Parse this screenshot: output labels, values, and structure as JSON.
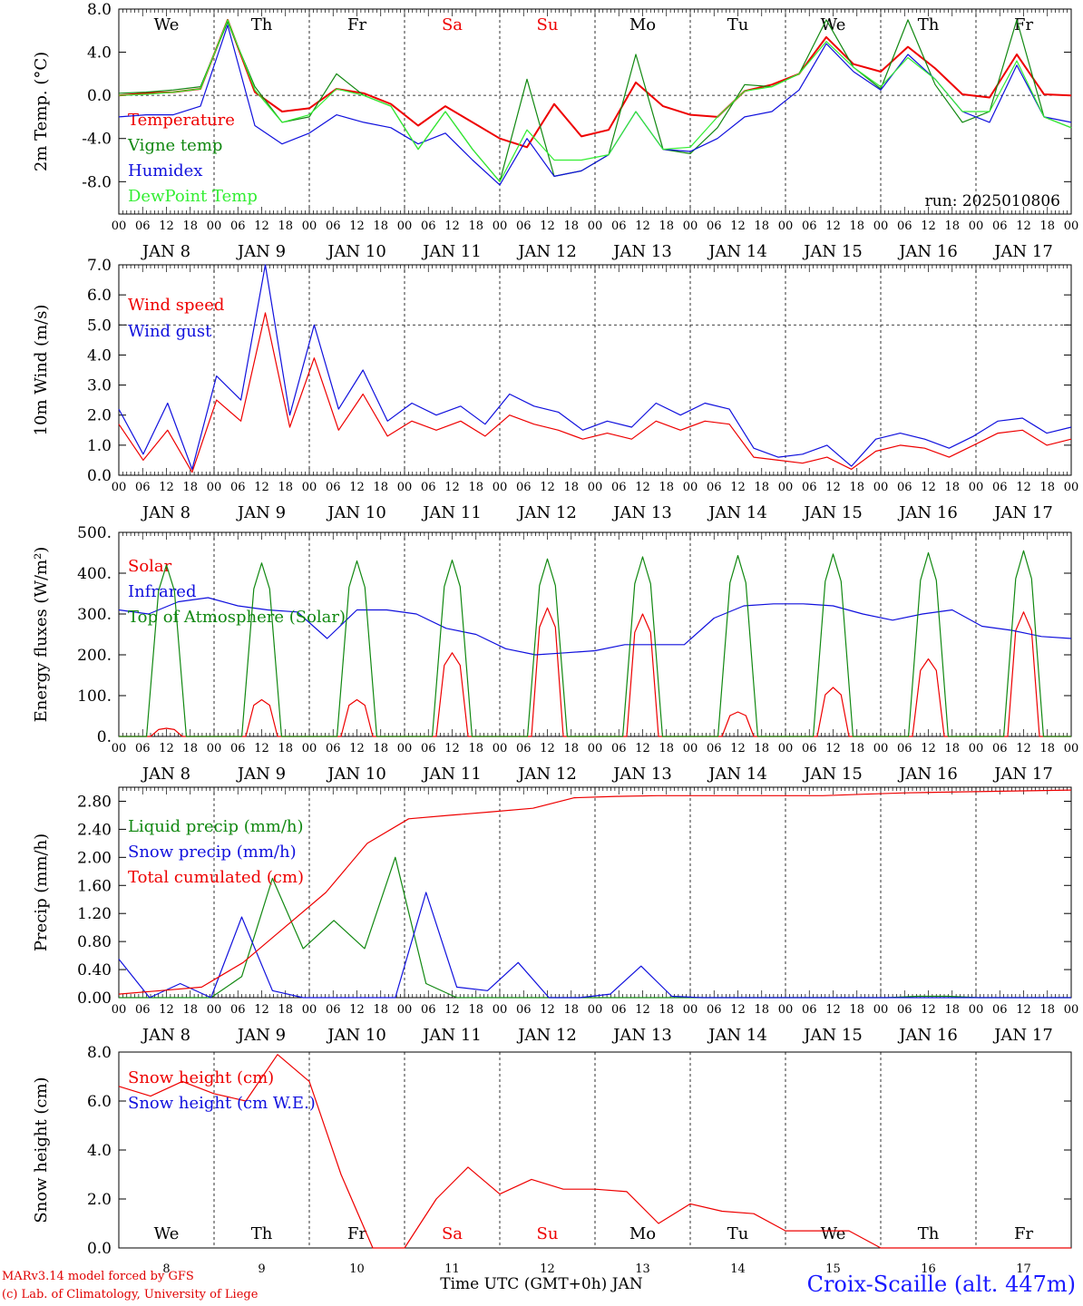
{
  "colors": {
    "red": "#ee0000",
    "green": "#118811",
    "blue": "#1010dd",
    "lightgreen": "#33ee33",
    "weekend": "#ee0000"
  },
  "footer": {
    "credit_line1": "MARv3.14 model forced by GFS",
    "credit_line2": "(c) Lab. of Climatology, University of Liege",
    "x_title": "Time UTC (GMT+0h) JAN",
    "station": "Croix-Scaille (alt. 447m)"
  },
  "chart_data": [
    {
      "type": "line",
      "ylabel": "2m Temp. (°C)",
      "ylim": [
        -11,
        8
      ],
      "yticks": [
        "8.0",
        "4.0",
        "0.0",
        "-4.0",
        "-8.0"
      ],
      "ytick_values": [
        8,
        4,
        0,
        -4,
        -8
      ],
      "ref_line": 0,
      "weekdays": [
        "We",
        "Th",
        "Fr",
        "Sa",
        "Su",
        "Mo",
        "Tu",
        "We",
        "Th",
        "Fr"
      ],
      "weekend_days": [
        "Sa",
        "Su"
      ],
      "run_label": "run: 2025010806",
      "x_hours": [
        0,
        6,
        12,
        18,
        24,
        30,
        36,
        42,
        48,
        54,
        60,
        66,
        72,
        78,
        84,
        90,
        96,
        102,
        108,
        114,
        120,
        126,
        132,
        138,
        144,
        150,
        156,
        162,
        168,
        174,
        180,
        186,
        192,
        198,
        204,
        210,
        216,
        222,
        228,
        234,
        240
      ],
      "series": [
        {
          "name": "Temperature",
          "color": "red",
          "values": [
            0.0,
            0.2,
            0.3,
            0.6,
            7.0,
            0.3,
            -1.5,
            -1.2,
            0.6,
            0.2,
            -0.8,
            -2.8,
            -1.0,
            -2.5,
            -4.0,
            -4.8,
            -0.8,
            -3.8,
            -3.2,
            1.2,
            -1.0,
            -1.8,
            -2.0,
            0.4,
            1.0,
            2.0,
            5.4,
            2.9,
            2.2,
            4.5,
            2.5,
            0.1,
            -0.2,
            3.8,
            0.1,
            0.0
          ]
        },
        {
          "name": "Vigne temp",
          "color": "green",
          "values": [
            0.2,
            0.3,
            0.5,
            0.8,
            6.8,
            0.8,
            -2.5,
            -2.0,
            2.0,
            0.0,
            -1.0,
            -5.0,
            -1.5,
            -5.0,
            -8.0,
            1.5,
            -7.5,
            -7.0,
            -5.5,
            3.8,
            -5.0,
            -5.4,
            -3.0,
            1.0,
            0.8,
            2.0,
            7.0,
            2.6,
            0.6,
            7.0,
            1.0,
            -2.5,
            -1.5,
            7.0,
            -2.0,
            -3.0
          ]
        },
        {
          "name": "Humidex",
          "color": "blue",
          "values": [
            -2.0,
            -1.8,
            -1.8,
            -1.0,
            6.5,
            -2.8,
            -4.5,
            -3.5,
            -1.8,
            -2.5,
            -3.0,
            -4.5,
            -3.5,
            -6.0,
            -8.3,
            -4.0,
            -7.5,
            -7.0,
            -5.5,
            -1.5,
            -5.0,
            -5.2,
            -4.0,
            -2.0,
            -1.5,
            0.5,
            4.8,
            2.2,
            0.5,
            3.8,
            1.5,
            -1.5,
            -2.5,
            2.8,
            -2.0,
            -2.5
          ]
        },
        {
          "name": "DewPoint Temp",
          "color": "lightgreen",
          "values": [
            0.0,
            0.1,
            0.3,
            0.6,
            7.0,
            0.5,
            -2.5,
            -1.8,
            0.6,
            0.0,
            -1.0,
            -5.0,
            -1.5,
            -5.0,
            -8.0,
            -3.2,
            -6.0,
            -6.0,
            -5.5,
            -1.5,
            -5.0,
            -4.8,
            -2.0,
            0.4,
            0.8,
            2.0,
            5.0,
            2.6,
            0.8,
            3.5,
            1.5,
            -1.5,
            -1.5,
            3.2,
            -2.0,
            -3.0
          ]
        }
      ]
    },
    {
      "type": "line",
      "ylabel": "10m Wind (m/s)",
      "ylim": [
        0,
        7
      ],
      "yticks": [
        "7.0",
        "6.0",
        "5.0",
        "4.0",
        "3.0",
        "2.0",
        "1.0",
        "0.0"
      ],
      "ytick_values": [
        7,
        6,
        5,
        4,
        3,
        2,
        1,
        0
      ],
      "ref_line": 5,
      "series": [
        {
          "name": "Wind speed",
          "color": "red",
          "values": [
            1.7,
            0.5,
            1.5,
            0.1,
            2.5,
            1.8,
            5.4,
            1.6,
            3.9,
            1.5,
            2.7,
            1.3,
            1.8,
            1.5,
            1.8,
            1.3,
            2.0,
            1.7,
            1.5,
            1.2,
            1.4,
            1.2,
            1.8,
            1.5,
            1.8,
            1.7,
            0.6,
            0.5,
            0.4,
            0.6,
            0.2,
            0.8,
            1.0,
            0.9,
            0.6,
            1.0,
            1.4,
            1.5,
            1.0,
            1.2
          ]
        },
        {
          "name": "Wind gust",
          "color": "blue",
          "values": [
            2.2,
            0.7,
            2.4,
            0.2,
            3.3,
            2.5,
            7.0,
            2.0,
            5.0,
            2.2,
            3.5,
            1.8,
            2.4,
            2.0,
            2.3,
            1.7,
            2.7,
            2.3,
            2.1,
            1.5,
            1.8,
            1.6,
            2.4,
            2.0,
            2.4,
            2.2,
            0.9,
            0.6,
            0.7,
            1.0,
            0.3,
            1.2,
            1.4,
            1.2,
            0.9,
            1.3,
            1.8,
            1.9,
            1.4,
            1.6
          ]
        }
      ]
    },
    {
      "type": "line",
      "ylabel": "Energy fluxes (W/m²)",
      "ylim": [
        0,
        500
      ],
      "yticks": [
        "500.",
        "400.",
        "300.",
        "200.",
        "100.",
        "0."
      ],
      "ytick_values": [
        500,
        400,
        300,
        200,
        100,
        0
      ],
      "series": [
        {
          "name": "Solar",
          "color": "red",
          "day_peaks": [
            20,
            90,
            90,
            205,
            315,
            300,
            60,
            120,
            190,
            305
          ]
        },
        {
          "name": "Infrared",
          "color": "blue",
          "values": [
            310,
            300,
            330,
            340,
            320,
            310,
            305,
            240,
            310,
            310,
            300,
            265,
            250,
            215,
            200,
            205,
            210,
            225,
            225,
            225,
            290,
            320,
            325,
            325,
            320,
            300,
            285,
            300,
            310,
            270,
            260,
            245,
            240
          ]
        },
        {
          "name": "Top of Atmosphere (Solar)",
          "color": "green",
          "day_peaks": [
            420,
            425,
            430,
            432,
            435,
            440,
            443,
            447,
            450,
            455
          ]
        }
      ]
    },
    {
      "type": "line",
      "ylabel": "Precip (mm/h)",
      "ylim": [
        0,
        3.0
      ],
      "yticks": [
        "2.80",
        "2.40",
        "2.00",
        "1.60",
        "1.20",
        "0.80",
        "0.40",
        "0.00"
      ],
      "ytick_values": [
        2.8,
        2.4,
        2.0,
        1.6,
        1.2,
        0.8,
        0.4,
        0.0
      ],
      "series": [
        {
          "name": "Liquid precip (mm/h)",
          "color": "green",
          "values": [
            0,
            0,
            0,
            0,
            0.3,
            1.7,
            0.7,
            1.1,
            0.7,
            2.0,
            0.2,
            0,
            0,
            0,
            0,
            0,
            0,
            0,
            0,
            0,
            0,
            0,
            0,
            0,
            0,
            0,
            0.02,
            0.02,
            0,
            0,
            0,
            0
          ]
        },
        {
          "name": "Snow precip (mm/h)",
          "color": "blue",
          "values": [
            0.55,
            0,
            0.2,
            0,
            1.15,
            0.1,
            0,
            0,
            0,
            0,
            1.5,
            0.15,
            0.1,
            0.5,
            0,
            0,
            0.05,
            0.45,
            0.02,
            0,
            0,
            0,
            0,
            0,
            0,
            0,
            0,
            0,
            0,
            0,
            0,
            0
          ]
        },
        {
          "name": "Total cumulated (cm)",
          "color": "red",
          "values": [
            0.05,
            0.1,
            0.15,
            0.5,
            1.0,
            1.5,
            2.2,
            2.55,
            2.6,
            2.65,
            2.7,
            2.85,
            2.87,
            2.88,
            2.88,
            2.88,
            2.88,
            2.88,
            2.9,
            2.92,
            2.93,
            2.94,
            2.95,
            2.96
          ]
        }
      ]
    },
    {
      "type": "line",
      "ylabel": "Snow height (cm)",
      "ylim": [
        0,
        8
      ],
      "yticks": [
        "8.0",
        "6.0",
        "4.0",
        "2.0",
        "0.0"
      ],
      "ytick_values": [
        8,
        6,
        4,
        2,
        0
      ],
      "weekdays": [
        "We",
        "Th",
        "Fr",
        "Sa",
        "Su",
        "Mo",
        "Tu",
        "We",
        "Th",
        "Fr"
      ],
      "day_labels": [
        "8",
        "9",
        "10",
        "11",
        "12",
        "13",
        "14",
        "15",
        "16",
        "17"
      ],
      "series": [
        {
          "name": "Snow height (cm)",
          "color": "red",
          "values": [
            6.6,
            6.2,
            6.8,
            6.3,
            6.0,
            7.9,
            6.8,
            3.0,
            0.0,
            0.0,
            2.0,
            3.3,
            2.2,
            2.8,
            2.4,
            2.4,
            2.3,
            1.0,
            1.8,
            1.5,
            1.4,
            0.7,
            0.7,
            0.7,
            0.0,
            0.0,
            0.0,
            0.0,
            0.0,
            0.0,
            0.0
          ]
        },
        {
          "name": "Snow height (cm W.E.)",
          "color": "blue",
          "values": []
        }
      ]
    }
  ]
}
